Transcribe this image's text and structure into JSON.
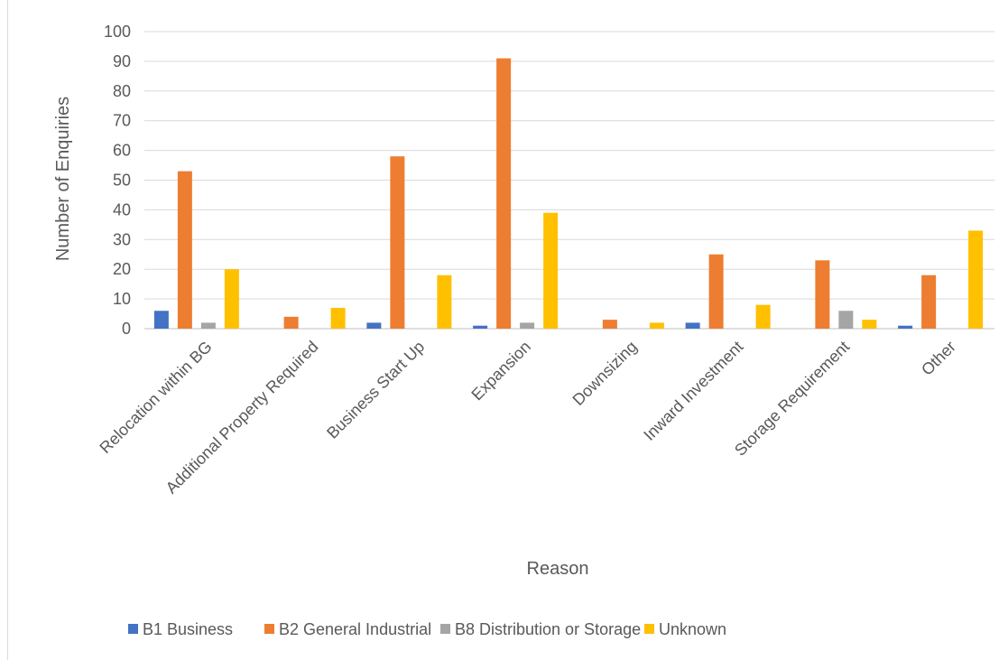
{
  "chart_data": {
    "type": "bar",
    "title": "",
    "xlabel": "Reason",
    "ylabel": "Number of Enquiries",
    "ylim": [
      0,
      100
    ],
    "yticks": [
      0,
      10,
      20,
      30,
      40,
      50,
      60,
      70,
      80,
      90,
      100
    ],
    "grid": true,
    "legend_position": "bottom",
    "categories": [
      "Relocation within BG",
      "Additional Property Required",
      "Business Start Up",
      "Expansion",
      "Downsizing",
      "Inward Investment",
      "Storage Requirement",
      "Other"
    ],
    "series": [
      {
        "name": "B1 Business",
        "color": "#4472c4",
        "values": [
          6,
          0,
          2,
          1,
          0,
          2,
          0,
          1
        ]
      },
      {
        "name": "B2 General Industrial",
        "color": "#ed7d31",
        "values": [
          53,
          4,
          58,
          91,
          3,
          25,
          23,
          18
        ]
      },
      {
        "name": "B8 Distribution or Storage",
        "color": "#a5a5a5",
        "values": [
          2,
          0,
          0,
          2,
          0,
          0,
          6,
          0
        ]
      },
      {
        "name": "Unknown",
        "color": "#ffc000",
        "values": [
          20,
          7,
          18,
          39,
          2,
          8,
          3,
          33
        ]
      }
    ]
  }
}
